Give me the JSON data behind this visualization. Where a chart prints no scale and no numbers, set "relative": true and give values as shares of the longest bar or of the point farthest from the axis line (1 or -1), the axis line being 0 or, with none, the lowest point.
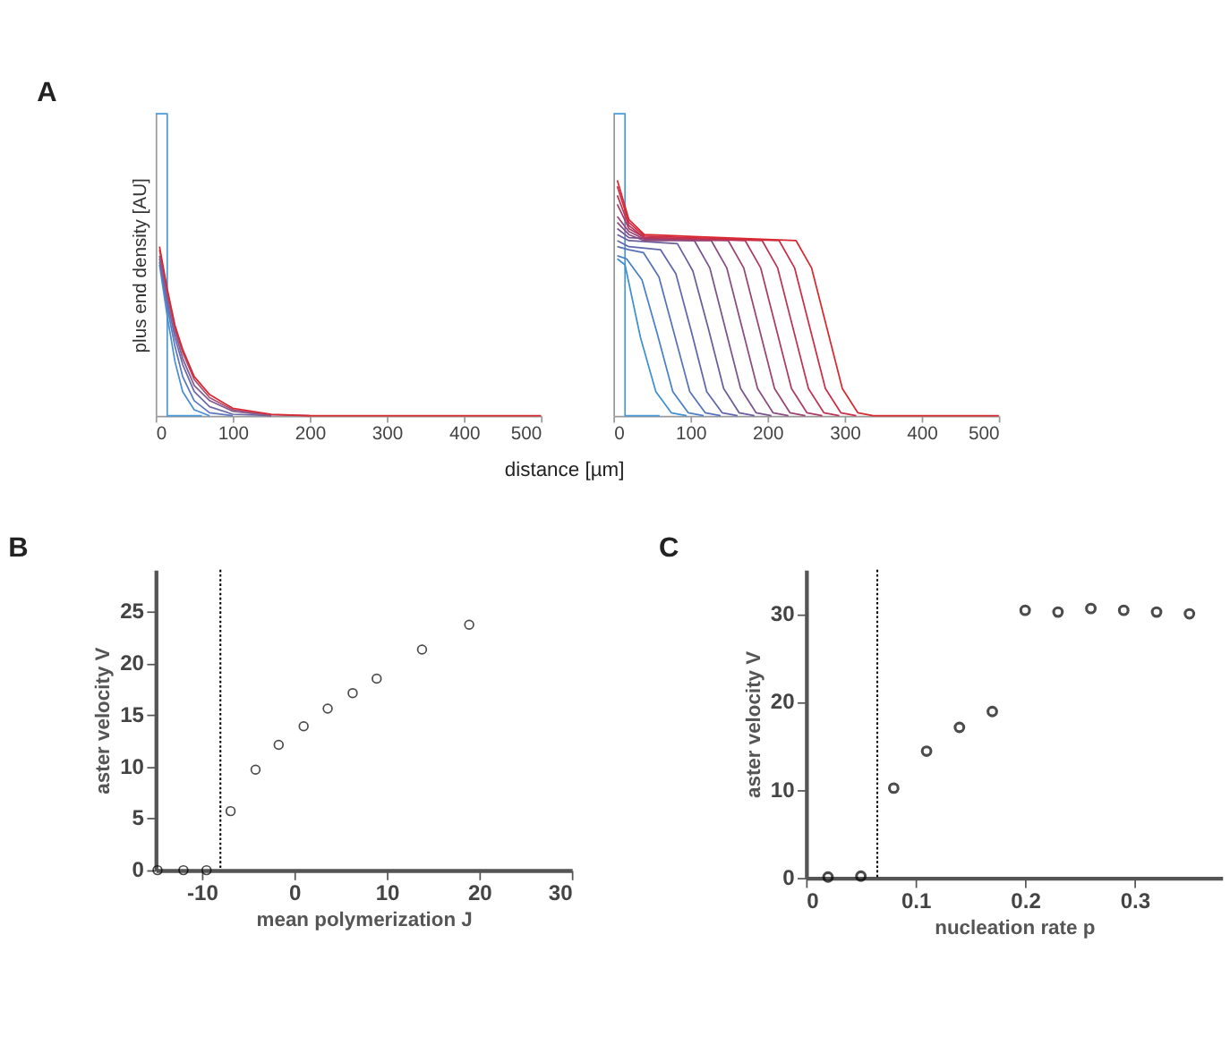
{
  "chart_data": [
    {
      "type": "line",
      "title": "A",
      "xlabel": "distance [µm]",
      "ylabel": "plus end density [AU]",
      "relative": true,
      "tick_labels": "x",
      "xlim": [
        0,
        500
      ],
      "xticks": [
        0,
        100,
        200,
        300,
        400,
        500
      ],
      "series": [
        {
          "color": "#4a9ad9",
          "x": [
            0,
            15,
            15,
            60
          ],
          "values": [
            1,
            1,
            0,
            0
          ]
        },
        {
          "color": "#4a8fd2",
          "x": [
            5,
            15,
            25,
            35,
            50,
            70
          ],
          "values": [
            0.5,
            0.33,
            0.18,
            0.08,
            0.02,
            0
          ]
        },
        {
          "color": "#5a78c0",
          "x": [
            5,
            15,
            25,
            35,
            50,
            70,
            100
          ],
          "values": [
            0.51,
            0.36,
            0.23,
            0.13,
            0.05,
            0.01,
            0
          ]
        },
        {
          "color": "#6a6aa8",
          "x": [
            5,
            15,
            25,
            35,
            50,
            70,
            100,
            150
          ],
          "values": [
            0.52,
            0.38,
            0.26,
            0.17,
            0.08,
            0.03,
            0.005,
            0
          ]
        },
        {
          "color": "#845c90",
          "x": [
            5,
            15,
            25,
            35,
            50,
            70,
            100,
            150
          ],
          "values": [
            0.53,
            0.4,
            0.28,
            0.19,
            0.1,
            0.05,
            0.015,
            0
          ]
        },
        {
          "color": "#a84c70",
          "x": [
            5,
            15,
            25,
            35,
            50,
            70,
            100,
            150,
            200
          ],
          "values": [
            0.55,
            0.41,
            0.29,
            0.21,
            0.12,
            0.06,
            0.02,
            0.003,
            0
          ]
        },
        {
          "color": "#d9282f",
          "x": [
            5,
            15,
            25,
            35,
            50,
            70,
            100,
            150,
            200,
            500
          ],
          "values": [
            0.56,
            0.42,
            0.3,
            0.22,
            0.13,
            0.07,
            0.025,
            0.005,
            0,
            0
          ]
        }
      ]
    },
    {
      "type": "line",
      "relative": true,
      "tick_labels": "x",
      "xlim": [
        0,
        500
      ],
      "xticks": [
        0,
        100,
        200,
        300,
        400,
        500
      ],
      "series": [
        {
          "color": "#4a9ad9",
          "x": [
            0,
            15,
            15,
            60
          ],
          "values": [
            1,
            1,
            0,
            0
          ]
        },
        {
          "color": "#3f8fd2",
          "x": [
            5,
            15,
            35,
            55,
            75,
            95
          ],
          "values": [
            0.52,
            0.5,
            0.26,
            0.08,
            0.01,
            0
          ]
        },
        {
          "color": "#4a80c6",
          "x": [
            5,
            17,
            37,
            57,
            77,
            97,
            117
          ],
          "values": [
            0.53,
            0.52,
            0.45,
            0.27,
            0.08,
            0.01,
            0
          ]
        },
        {
          "color": "#5572b8",
          "x": [
            5,
            20,
            39,
            59,
            79,
            99,
            119,
            139
          ],
          "values": [
            0.56,
            0.55,
            0.54,
            0.46,
            0.27,
            0.08,
            0.01,
            0
          ]
        },
        {
          "color": "#6066aa",
          "x": [
            5,
            20,
            61,
            81,
            101,
            121,
            141,
            161
          ],
          "values": [
            0.58,
            0.56,
            0.55,
            0.47,
            0.28,
            0.08,
            0.01,
            0
          ]
        },
        {
          "color": "#6c5c9c",
          "x": [
            5,
            20,
            83,
            103,
            123,
            143,
            163,
            183
          ],
          "values": [
            0.6,
            0.58,
            0.57,
            0.48,
            0.29,
            0.09,
            0.01,
            0
          ]
        },
        {
          "color": "#7a538e",
          "x": [
            5,
            20,
            105,
            125,
            145,
            165,
            185,
            205
          ],
          "values": [
            0.62,
            0.59,
            0.58,
            0.49,
            0.29,
            0.09,
            0.01,
            0
          ]
        },
        {
          "color": "#8a4b80",
          "x": [
            5,
            20,
            40,
            127,
            147,
            167,
            187,
            207,
            227
          ],
          "values": [
            0.64,
            0.6,
            0.58,
            0.58,
            0.49,
            0.29,
            0.09,
            0.01,
            0
          ]
        },
        {
          "color": "#9a4372",
          "x": [
            5,
            20,
            40,
            149,
            169,
            189,
            209,
            229,
            249
          ],
          "values": [
            0.66,
            0.61,
            0.585,
            0.58,
            0.49,
            0.29,
            0.09,
            0.01,
            0
          ]
        },
        {
          "color": "#ab3b63",
          "x": [
            5,
            20,
            40,
            171,
            191,
            211,
            231,
            251,
            271
          ],
          "values": [
            0.7,
            0.62,
            0.59,
            0.58,
            0.49,
            0.29,
            0.09,
            0.01,
            0
          ]
        },
        {
          "color": "#bc3455",
          "x": [
            5,
            20,
            40,
            193,
            213,
            233,
            253,
            273,
            293
          ],
          "values": [
            0.73,
            0.63,
            0.59,
            0.58,
            0.49,
            0.29,
            0.09,
            0.01,
            0
          ]
        },
        {
          "color": "#cc2d46",
          "x": [
            5,
            20,
            40,
            215,
            235,
            255,
            275,
            295,
            315
          ],
          "values": [
            0.76,
            0.64,
            0.595,
            0.58,
            0.49,
            0.29,
            0.09,
            0.01,
            0
          ]
        },
        {
          "color": "#d9282f",
          "x": [
            5,
            20,
            40,
            237,
            257,
            277,
            297,
            317,
            337,
            500
          ],
          "values": [
            0.78,
            0.65,
            0.6,
            0.58,
            0.49,
            0.29,
            0.09,
            0.01,
            0,
            0
          ]
        }
      ]
    },
    {
      "type": "scatter",
      "title": "B",
      "xlabel": "mean polymerization J",
      "ylabel": "aster velocity V",
      "color": "#000000",
      "marker": "circle",
      "x": [
        -14.8,
        -12,
        -9.5,
        -6.9,
        -4.2,
        -1.7,
        1,
        3.6,
        6.3,
        8.9,
        13.8,
        18.9
      ],
      "values": [
        0,
        0,
        0,
        5.7,
        9.7,
        12.1,
        13.9,
        15.6,
        17.1,
        18.5,
        21.3,
        23.7
      ],
      "xlim": [
        -15,
        30
      ],
      "xticks": [
        -10,
        0,
        10,
        20,
        30
      ],
      "ylim": [
        0,
        29
      ],
      "yticks": [
        0,
        5,
        10,
        15,
        20,
        25
      ],
      "ref_lines": [
        {
          "axis": "x",
          "value": -8,
          "line_style": "dotted",
          "color": "#000000"
        }
      ]
    },
    {
      "type": "scatter",
      "title": "C",
      "xlabel": "nucleation rate p",
      "ylabel": "aster velocity V",
      "color": "#000000",
      "marker": "circle",
      "x": [
        0.02,
        0.05,
        0.08,
        0.11,
        0.14,
        0.17,
        0.2,
        0.23,
        0.26,
        0.29,
        0.32,
        0.35
      ],
      "values": [
        0.1,
        0.2,
        10.2,
        14.4,
        17.1,
        18.9,
        30.4,
        30.2,
        30.6,
        30.4,
        30.2,
        30
      ],
      "xlim": [
        0,
        0.38
      ],
      "xticks": [
        0,
        0.1,
        0.2,
        0.3
      ],
      "ylim": [
        0,
        35
      ],
      "yticks": [
        0,
        10,
        20,
        30
      ],
      "ref_lines": [
        {
          "axis": "x",
          "value": 0.065,
          "line_style": "dotted",
          "color": "#000000"
        }
      ]
    }
  ]
}
